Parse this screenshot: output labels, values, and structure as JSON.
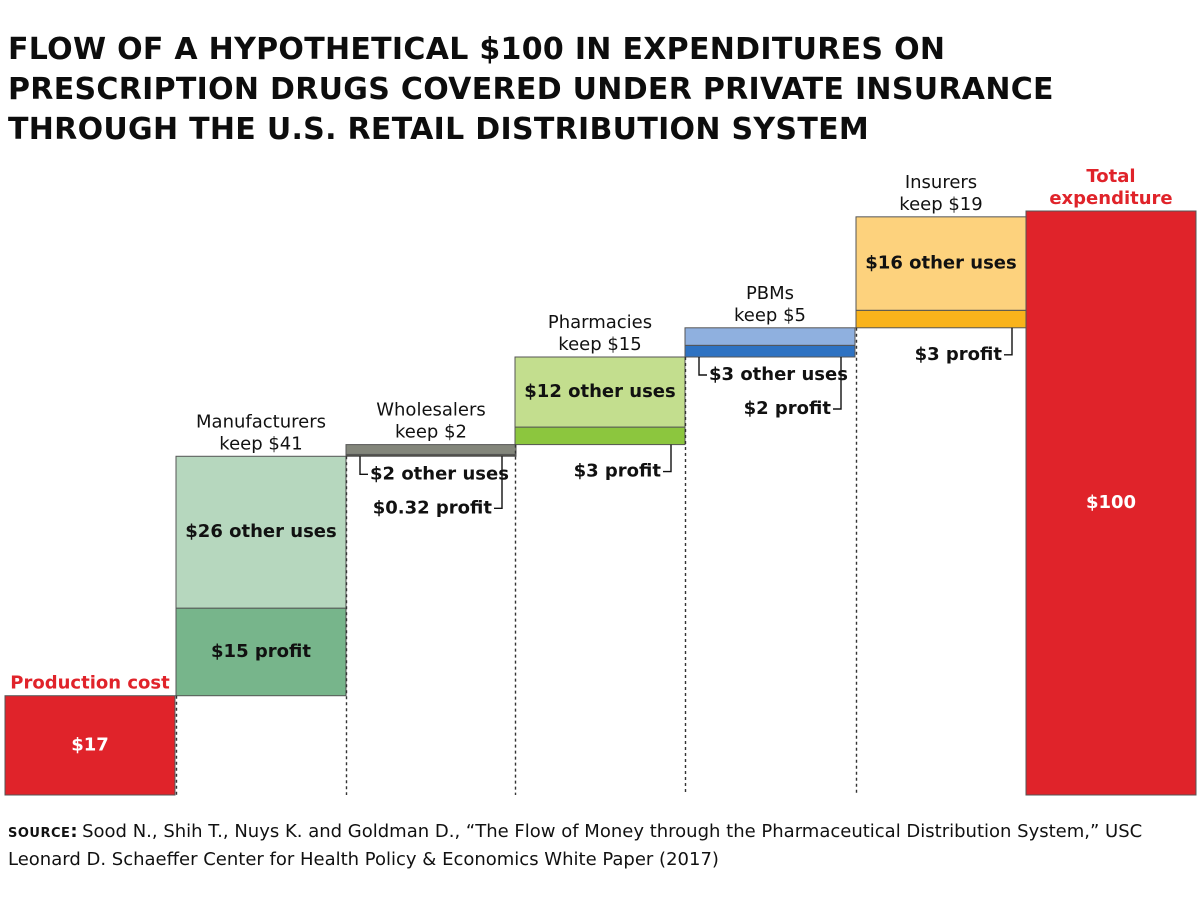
{
  "title_lines": [
    "FLOW OF A HYPOTHETICAL $100 IN EXPENDITURES ON",
    "PRESCRIPTION DRUGS COVERED UNDER PRIVATE INSURANCE",
    "THROUGH THE U.S. RETAIL DISTRIBUTION SYSTEM"
  ],
  "source": {
    "label": "source:",
    "text": "Sood N., Shih T., Nuys K. and Goldman D., “The Flow of Money through the Pharmaceutical Distribution System,” USC Leonard D. Schaeffer Center for Health Policy & Economics White Paper (2017)"
  },
  "chart_data": {
    "type": "bar",
    "subtype": "waterfall",
    "ylim": [
      0,
      100
    ],
    "grid": false,
    "categories": [
      {
        "name": "Production cost",
        "header": [
          "Production cost"
        ],
        "header_color": "#e0232a",
        "segments": [
          {
            "value": 17,
            "label": "$17",
            "color": "#e0232a",
            "text_color": "#ffffff",
            "label_position": "inside"
          }
        ]
      },
      {
        "name": "Manufacturers",
        "header": [
          "Manufacturers",
          "keep $41"
        ],
        "segments": [
          {
            "value": 15,
            "label": "$15 profit",
            "color": "#77b58b",
            "label_position": "inside"
          },
          {
            "value": 26,
            "label": "$26 other uses",
            "color": "#b6d7be",
            "label_position": "inside"
          }
        ]
      },
      {
        "name": "Wholesalers",
        "header": [
          "Wholesalers",
          "keep $2"
        ],
        "segments": [
          {
            "value": 0.32,
            "label": "$0.32 profit",
            "color": "#4e4e46",
            "label_position": "callout-right"
          },
          {
            "value": 1.68,
            "label": "$2 other uses",
            "color": "#83867b",
            "label_position": "callout-left"
          }
        ]
      },
      {
        "name": "Pharmacies",
        "header": [
          "Pharmacies",
          "keep $15"
        ],
        "segments": [
          {
            "value": 3,
            "label": "$3 profit",
            "color": "#8cc63e",
            "label_position": "callout-right"
          },
          {
            "value": 12,
            "label": "$12 other uses",
            "color": "#c3de8e",
            "label_position": "inside"
          }
        ]
      },
      {
        "name": "PBMs",
        "header": [
          "PBMs",
          "keep $5"
        ],
        "segments": [
          {
            "value": 2,
            "label": "$2 profit",
            "color": "#2e72c2",
            "label_position": "callout-right"
          },
          {
            "value": 3,
            "label": "$3 other uses",
            "color": "#8fb0df",
            "label_position": "callout-left"
          }
        ]
      },
      {
        "name": "Insurers",
        "header": [
          "Insurers",
          "keep $19"
        ],
        "segments": [
          {
            "value": 3,
            "label": "$3 profit",
            "color": "#f9b31b",
            "label_position": "callout-right"
          },
          {
            "value": 16,
            "label": "$16 other uses",
            "color": "#fdd27d",
            "label_position": "inside"
          }
        ]
      },
      {
        "name": "Total expenditure",
        "header": [
          "Total",
          "expenditure"
        ],
        "header_color": "#e0232a",
        "is_total": true,
        "segments": [
          {
            "value": 100,
            "label": "$100",
            "color": "#e0232a",
            "text_color": "#ffffff",
            "label_position": "inside"
          }
        ]
      }
    ]
  }
}
